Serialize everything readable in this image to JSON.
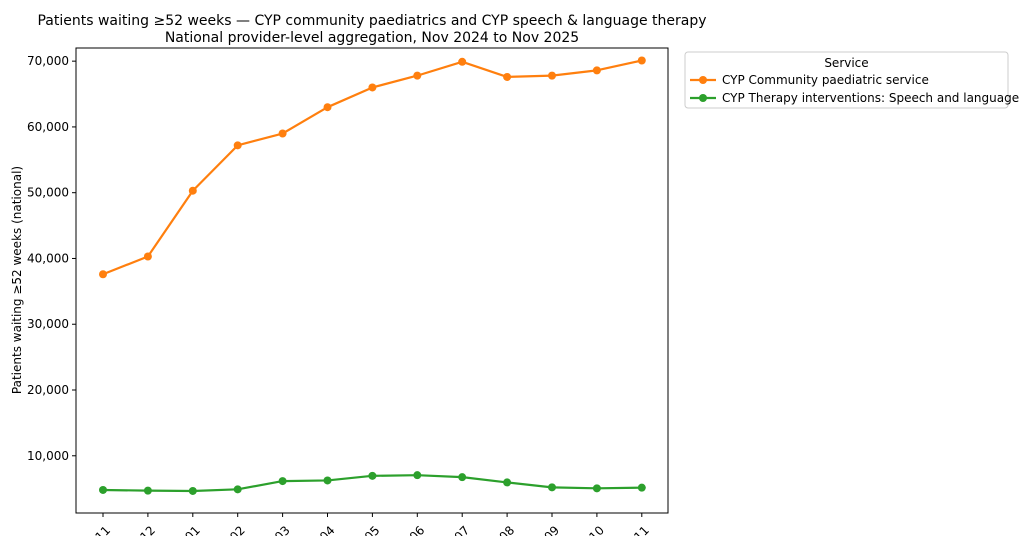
{
  "chart_data": {
    "type": "line",
    "title": "Patients waiting ≥52 weeks — CYP community paediatrics and CYP speech & language therapy",
    "subtitle": "National provider-level aggregation, Nov 2024 to Nov 2025",
    "xlabel": "",
    "ylabel": "Patients waiting ≥52 weeks (national)",
    "categories": [
      "11",
      "12",
      "01",
      "02",
      "03",
      "04",
      "05",
      "06",
      "07",
      "08",
      "09",
      "10",
      "11"
    ],
    "ylim": [
      1300,
      72000
    ],
    "yticks": [
      10000,
      20000,
      30000,
      40000,
      50000,
      60000,
      70000
    ],
    "ytick_labels": [
      "10,000",
      "20,000",
      "30,000",
      "40,000",
      "50,000",
      "60,000",
      "70,000"
    ],
    "grid": false,
    "legend": {
      "title": "Service",
      "placement": "outside-top-right"
    },
    "series": [
      {
        "name": "CYP Community paediatric service",
        "color": "#ff7f0e",
        "values": [
          37600,
          40300,
          50300,
          57200,
          59000,
          63000,
          66000,
          67800,
          69900,
          67600,
          67800,
          68600,
          70100
        ]
      },
      {
        "name": "CYP Therapy interventions: Speech and language",
        "color": "#2ca02c",
        "values": [
          4800,
          4700,
          4650,
          4900,
          6150,
          6250,
          6950,
          7050,
          6750,
          5950,
          5200,
          5050,
          5150
        ]
      }
    ]
  }
}
